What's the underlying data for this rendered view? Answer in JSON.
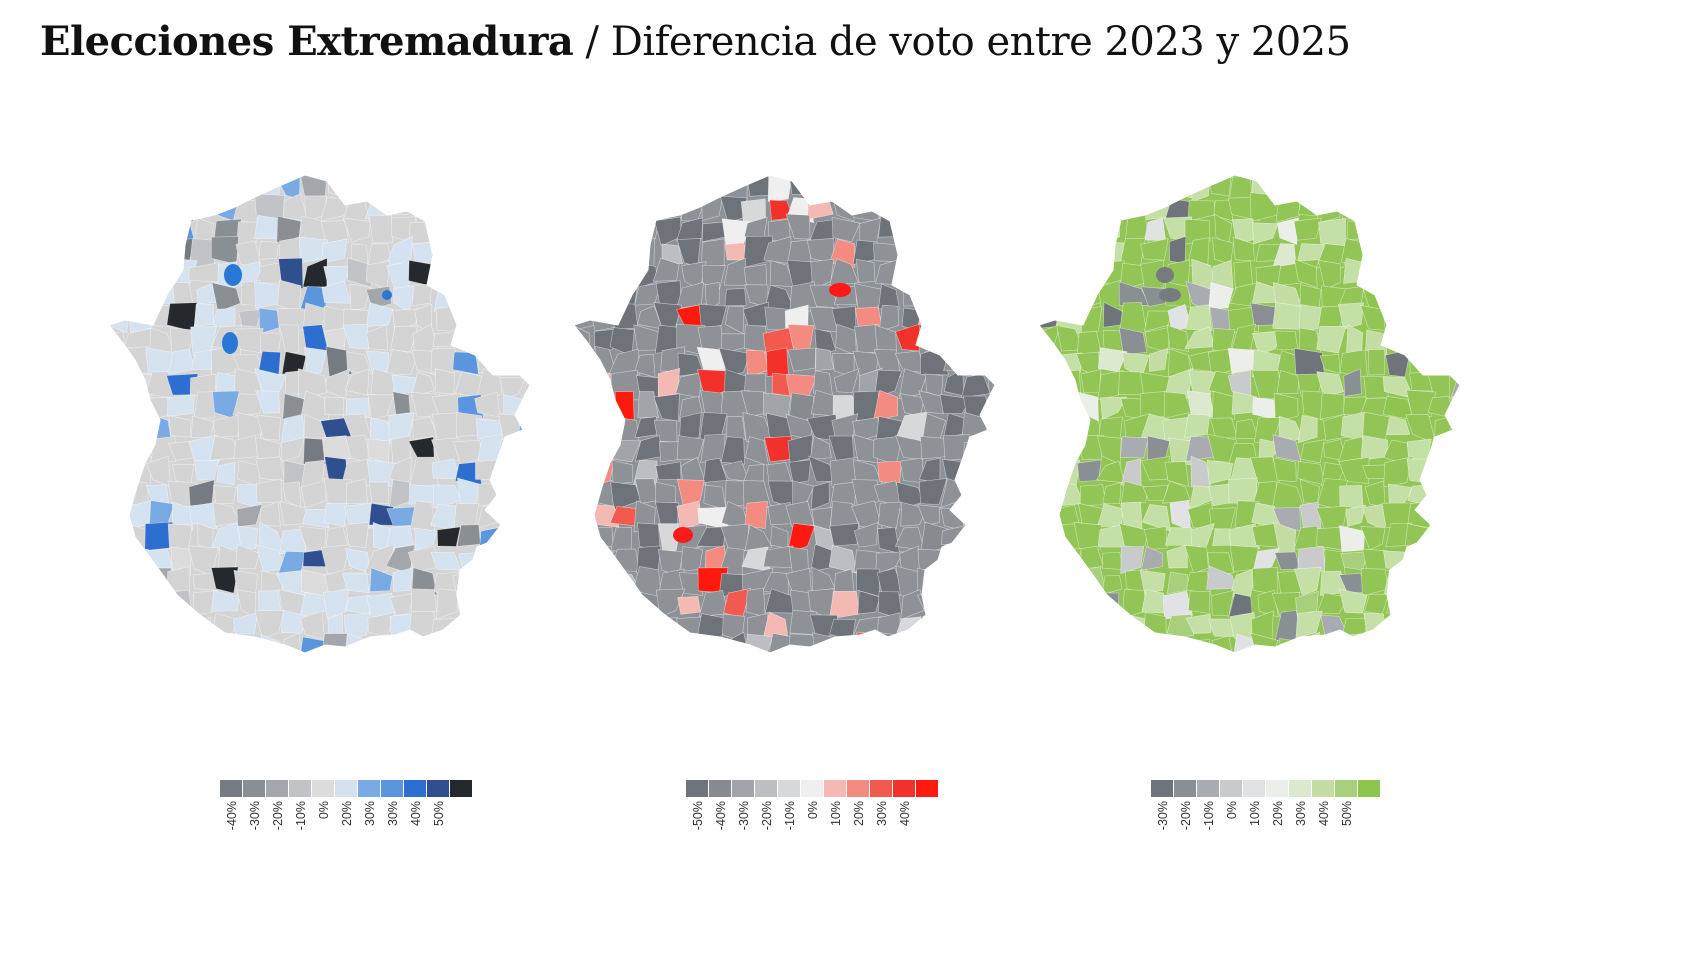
{
  "title": {
    "bold": "Elecciones Extremadura",
    "separator": "/",
    "subtitle": "Diferencia de voto entre 2023 y 2025"
  },
  "maps": [
    {
      "id": "map-1",
      "base_color": "#d4d4d4",
      "mid_color": "#d5e2f0",
      "accent_color": "#2a78d6",
      "legend": [
        {
          "label": "-40%",
          "color": "#767b81"
        },
        {
          "label": "-30%",
          "color": "#8a8f94"
        },
        {
          "label": "-20%",
          "color": "#a3a7ab"
        },
        {
          "label": "-10%",
          "color": "#c1c3c6"
        },
        {
          "label": "0%",
          "color": "#dcdcdc"
        },
        {
          "label": "20%",
          "color": "#d3e1f1"
        },
        {
          "label": "30%",
          "color": "#7aaae4"
        },
        {
          "label": "30%",
          "color": "#5a95dd"
        },
        {
          "label": "40%",
          "color": "#2d6fd0"
        },
        {
          "label": "50%",
          "color": "#2f4f8f"
        },
        {
          "label": "",
          "color": "#25282c"
        }
      ]
    },
    {
      "id": "map-2",
      "base_color": "#8e9297",
      "mid_color": "#6e7379",
      "accent_color": "#ff1a1a",
      "legend": [
        {
          "label": "-50%",
          "color": "#6f747a"
        },
        {
          "label": "-40%",
          "color": "#878b90"
        },
        {
          "label": "-30%",
          "color": "#a1a4a8"
        },
        {
          "label": "-20%",
          "color": "#bcbec1"
        },
        {
          "label": "-10%",
          "color": "#d7d8d9"
        },
        {
          "label": "0%",
          "color": "#efefef"
        },
        {
          "label": "10%",
          "color": "#f5b9b4"
        },
        {
          "label": "20%",
          "color": "#f38b80"
        },
        {
          "label": "30%",
          "color": "#f25a4f"
        },
        {
          "label": "40%",
          "color": "#f2312b"
        },
        {
          "label": "",
          "color": "#ff1a0f"
        }
      ]
    },
    {
      "id": "map-3",
      "base_color": "#92c556",
      "mid_color": "#c5e0a6",
      "accent_color": "#767b81",
      "legend": [
        {
          "label": "-30%",
          "color": "#6f747a"
        },
        {
          "label": "-20%",
          "color": "#8a8f94"
        },
        {
          "label": "-10%",
          "color": "#a8abaf"
        },
        {
          "label": "0%",
          "color": "#c8cacc"
        },
        {
          "label": "10%",
          "color": "#e1e2e3"
        },
        {
          "label": "20%",
          "color": "#eceee9"
        },
        {
          "label": "30%",
          "color": "#dde9cf"
        },
        {
          "label": "40%",
          "color": "#c3dda4"
        },
        {
          "label": "50%",
          "color": "#a8d07c"
        },
        {
          "label": "",
          "color": "#8ec54f"
        }
      ]
    }
  ]
}
